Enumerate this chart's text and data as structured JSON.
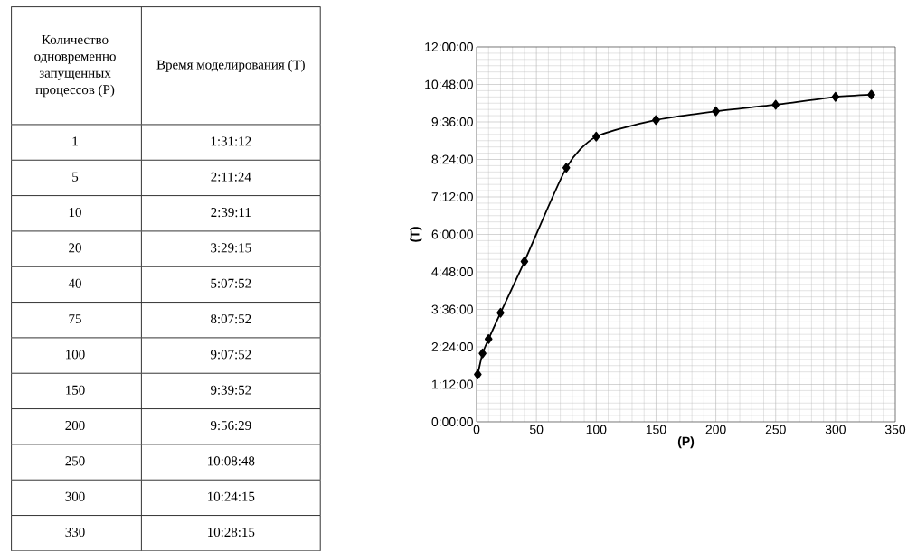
{
  "chart_data": [
    {
      "type": "other",
      "annotations": [
        "Количество одновременно запущенных процессов (P)",
        "Время моделирования (T)",
        "1",
        "1:31:12",
        "5",
        "2:11:24",
        "10",
        "2:39:11",
        "20",
        "3:29:15",
        "40",
        "5:07:52",
        "75",
        "8:07:52",
        "100",
        "9:07:52",
        "150",
        "9:39:52",
        "200",
        "9:56:29",
        "250",
        "10:08:48",
        "300",
        "10:24:15",
        "330",
        "10:28:15"
      ]
    },
    {
      "type": "line",
      "xlabel": "(P)",
      "ylabel": "(T)",
      "x": [
        1,
        5,
        10,
        20,
        40,
        75,
        100,
        150,
        200,
        250,
        300,
        330
      ],
      "values": [
        1.52,
        2.19,
        2.65,
        3.49,
        5.13,
        8.13,
        9.13,
        9.66,
        9.94,
        10.15,
        10.4,
        10.47
      ],
      "color": "#000000",
      "marker": "diamond",
      "line_style": "solid",
      "grid": true,
      "xlim": [
        0,
        350
      ],
      "xticks": [
        0,
        50,
        100,
        150,
        200,
        250,
        300,
        350
      ],
      "ylim": [
        0,
        12
      ],
      "yticks": [
        {
          "value": 0,
          "label": "0:00:00"
        },
        {
          "value": 1.2,
          "label": "1:12:00"
        },
        {
          "value": 2.4,
          "label": "2:24:00"
        },
        {
          "value": 3.6,
          "label": "3:36:00"
        },
        {
          "value": 4.8,
          "label": "4:48:00"
        },
        {
          "value": 6,
          "label": "6:00:00"
        },
        {
          "value": 7.2,
          "label": "7:12:00"
        },
        {
          "value": 8.4,
          "label": "8:24:00"
        },
        {
          "value": 9.6,
          "label": "9:36:00"
        },
        {
          "value": 10.8,
          "label": "10:48:00"
        },
        {
          "value": 12,
          "label": "12:00:00"
        }
      ]
    }
  ]
}
